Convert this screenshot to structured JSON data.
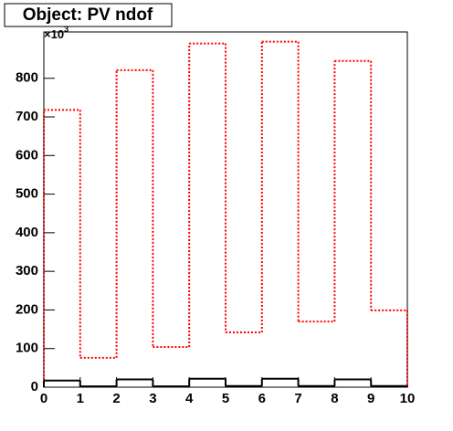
{
  "chart_data": {
    "type": "step-histogram",
    "title": "Object: PV ndof",
    "y_multiplier": "×10",
    "y_multiplier_exponent": "3",
    "bins": [
      0,
      1,
      2,
      3,
      4,
      5,
      6,
      7,
      8,
      9,
      10
    ],
    "series": [
      {
        "color": "#ff0000",
        "dashed": true,
        "values": [
          718,
          76,
          821,
          104,
          890,
          142,
          895,
          170,
          845,
          199
        ]
      },
      {
        "color": "#000000",
        "dashed": false,
        "values": [
          17,
          2,
          20,
          2,
          22,
          3,
          22,
          3,
          20,
          3
        ]
      }
    ],
    "xlim": [
      0,
      10
    ],
    "xticks": [
      0,
      1,
      2,
      3,
      4,
      5,
      6,
      7,
      8,
      9,
      10
    ],
    "ylim": [
      0,
      920
    ],
    "yticks": [
      0,
      100,
      200,
      300,
      400,
      500,
      600,
      700,
      800
    ]
  }
}
